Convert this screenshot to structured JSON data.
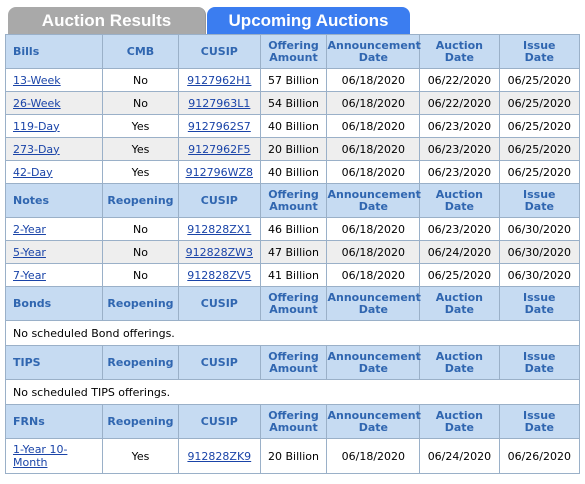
{
  "tabs": {
    "auction_results": "Auction Results",
    "upcoming_auctions": "Upcoming Auctions"
  },
  "headers": {
    "offering_amount_1": "Offering",
    "offering_amount_2": "Amount",
    "announcement_1": "Announcement",
    "announcement_2": "Date",
    "auction_1": "Auction",
    "auction_2": "Date",
    "issue_1": "Issue",
    "issue_2": "Date",
    "cusip": "CUSIP",
    "cmb": "CMB",
    "reopening": "Reopening"
  },
  "bills": {
    "title": "Bills",
    "rows": [
      {
        "term": "13-Week",
        "flag": "No",
        "cusip": "9127962H1",
        "amount": "57 Billion",
        "announce": "06/18/2020",
        "auction": "06/22/2020",
        "issue": "06/25/2020"
      },
      {
        "term": "26-Week",
        "flag": "No",
        "cusip": "9127963L1",
        "amount": "54 Billion",
        "announce": "06/18/2020",
        "auction": "06/22/2020",
        "issue": "06/25/2020"
      },
      {
        "term": "119-Day",
        "flag": "Yes",
        "cusip": "9127962S7",
        "amount": "40 Billion",
        "announce": "06/18/2020",
        "auction": "06/23/2020",
        "issue": "06/25/2020"
      },
      {
        "term": "273-Day",
        "flag": "Yes",
        "cusip": "9127962F5",
        "amount": "20 Billion",
        "announce": "06/18/2020",
        "auction": "06/23/2020",
        "issue": "06/25/2020"
      },
      {
        "term": "42-Day",
        "flag": "Yes",
        "cusip": "912796WZ8",
        "amount": "40 Billion",
        "announce": "06/18/2020",
        "auction": "06/23/2020",
        "issue": "06/25/2020"
      }
    ]
  },
  "notes": {
    "title": "Notes",
    "rows": [
      {
        "term": "2-Year",
        "flag": "No",
        "cusip": "912828ZX1",
        "amount": "46 Billion",
        "announce": "06/18/2020",
        "auction": "06/23/2020",
        "issue": "06/30/2020"
      },
      {
        "term": "5-Year",
        "flag": "No",
        "cusip": "912828ZW3",
        "amount": "47 Billion",
        "announce": "06/18/2020",
        "auction": "06/24/2020",
        "issue": "06/30/2020"
      },
      {
        "term": "7-Year",
        "flag": "No",
        "cusip": "912828ZV5",
        "amount": "41 Billion",
        "announce": "06/18/2020",
        "auction": "06/25/2020",
        "issue": "06/30/2020"
      }
    ]
  },
  "bonds": {
    "title": "Bonds",
    "message": "No scheduled Bond offerings."
  },
  "tips": {
    "title": "TIPS",
    "message": "No scheduled TIPS offerings."
  },
  "frns": {
    "title": "FRNs",
    "rows": [
      {
        "term": "1-Year 10-Month",
        "flag": "Yes",
        "cusip": "912828ZK9",
        "amount": "20 Billion",
        "announce": "06/18/2020",
        "auction": "06/24/2020",
        "issue": "06/26/2020"
      }
    ]
  }
}
